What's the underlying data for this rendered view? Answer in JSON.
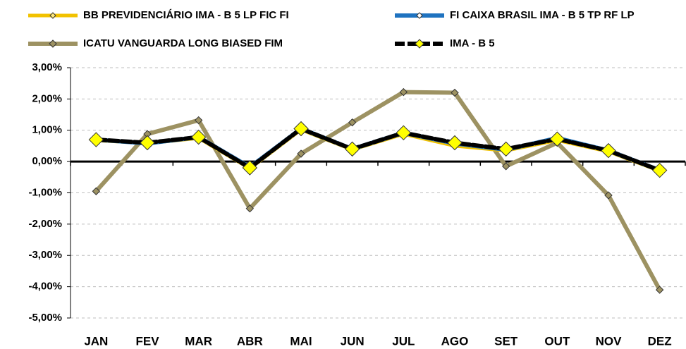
{
  "chart_data": {
    "type": "line",
    "categories": [
      "JAN",
      "FEV",
      "MAR",
      "ABR",
      "MAI",
      "JUN",
      "JUL",
      "AGO",
      "SET",
      "OUT",
      "NOV",
      "DEZ"
    ],
    "series": [
      {
        "name": "BB PREVIDENCIÁRIO IMA - B 5 LP FIC FI",
        "color": "#f2c200",
        "values": [
          0.68,
          0.58,
          0.75,
          -0.22,
          1.02,
          0.38,
          0.88,
          0.5,
          0.35,
          0.68,
          0.32,
          -0.3
        ]
      },
      {
        "name": "FI CAIXA BRASIL IMA - B 5 TP RF LP",
        "color": "#1f73c0",
        "values": [
          0.7,
          0.58,
          0.78,
          -0.18,
          1.05,
          0.4,
          0.92,
          0.58,
          0.38,
          0.75,
          0.35,
          -0.28
        ]
      },
      {
        "name": "ICATU VANGUARDA LONG BIASED FIM",
        "color": "#9d9262",
        "values": [
          -0.95,
          0.88,
          1.32,
          -1.5,
          0.25,
          1.25,
          2.22,
          2.2,
          -0.15,
          0.6,
          -1.08,
          -4.1
        ]
      },
      {
        "name": "IMA - B 5",
        "color": "#000000",
        "values": [
          0.7,
          0.6,
          0.78,
          -0.2,
          1.05,
          0.4,
          0.92,
          0.6,
          0.4,
          0.72,
          0.35,
          -0.28
        ]
      }
    ],
    "ylim": [
      -5,
      3
    ],
    "yticks": [
      {
        "value": -5,
        "label": "-5,00%"
      },
      {
        "value": -4,
        "label": "-4,00%"
      },
      {
        "value": -3,
        "label": "-3,00%"
      },
      {
        "value": -2,
        "label": "-2,00%"
      },
      {
        "value": -1,
        "label": "-1,00%"
      },
      {
        "value": 0,
        "label": "0,00%"
      },
      {
        "value": 1,
        "label": "1,00%"
      },
      {
        "value": 2,
        "label": "2,00%"
      },
      {
        "value": 3,
        "label": "3,00%"
      }
    ],
    "grid": true,
    "legend": "top"
  }
}
